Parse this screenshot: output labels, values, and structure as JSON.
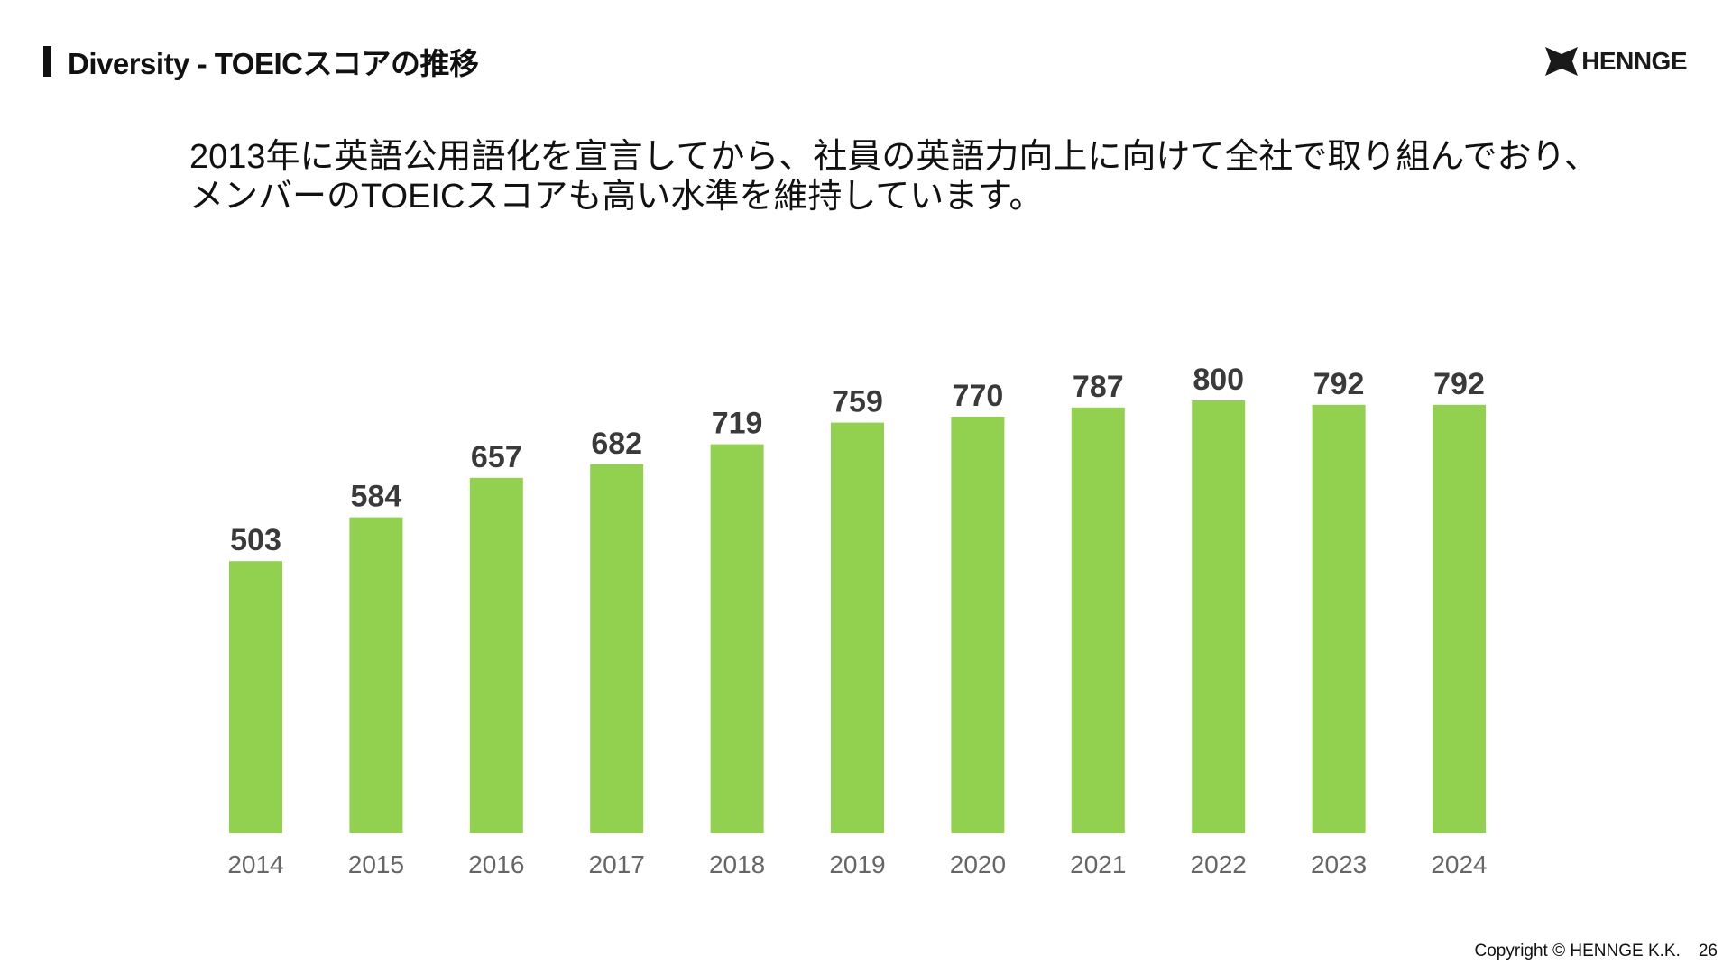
{
  "header": {
    "title": "Diversity - TOEICスコアの推移",
    "logo_text": "HENNGE"
  },
  "lead": {
    "line1": "2013年に英語公用語化を宣言してから、社員の英語力向上に向けて全社で取り組んでおり、",
    "line2": "メンバーのTOEICスコアも高い水準を維持しています。"
  },
  "chart_data": {
    "type": "bar",
    "categories": [
      "2014",
      "2015",
      "2016",
      "2017",
      "2018",
      "2019",
      "2020",
      "2021",
      "2022",
      "2023",
      "2024"
    ],
    "values": [
      503,
      584,
      657,
      682,
      719,
      759,
      770,
      787,
      800,
      792,
      792
    ],
    "data_labels": [
      "503",
      "584",
      "657",
      "682",
      "719",
      "759",
      "770",
      "787",
      "800",
      "792",
      "792"
    ],
    "ylim": [
      0,
      800
    ],
    "grid": false,
    "bar_color": "#92d050",
    "label_color": "#3a3a3a",
    "tick_color": "#666666"
  },
  "footer": {
    "copyright": "Copyright © HENNGE K.K.",
    "page_number": "26"
  }
}
